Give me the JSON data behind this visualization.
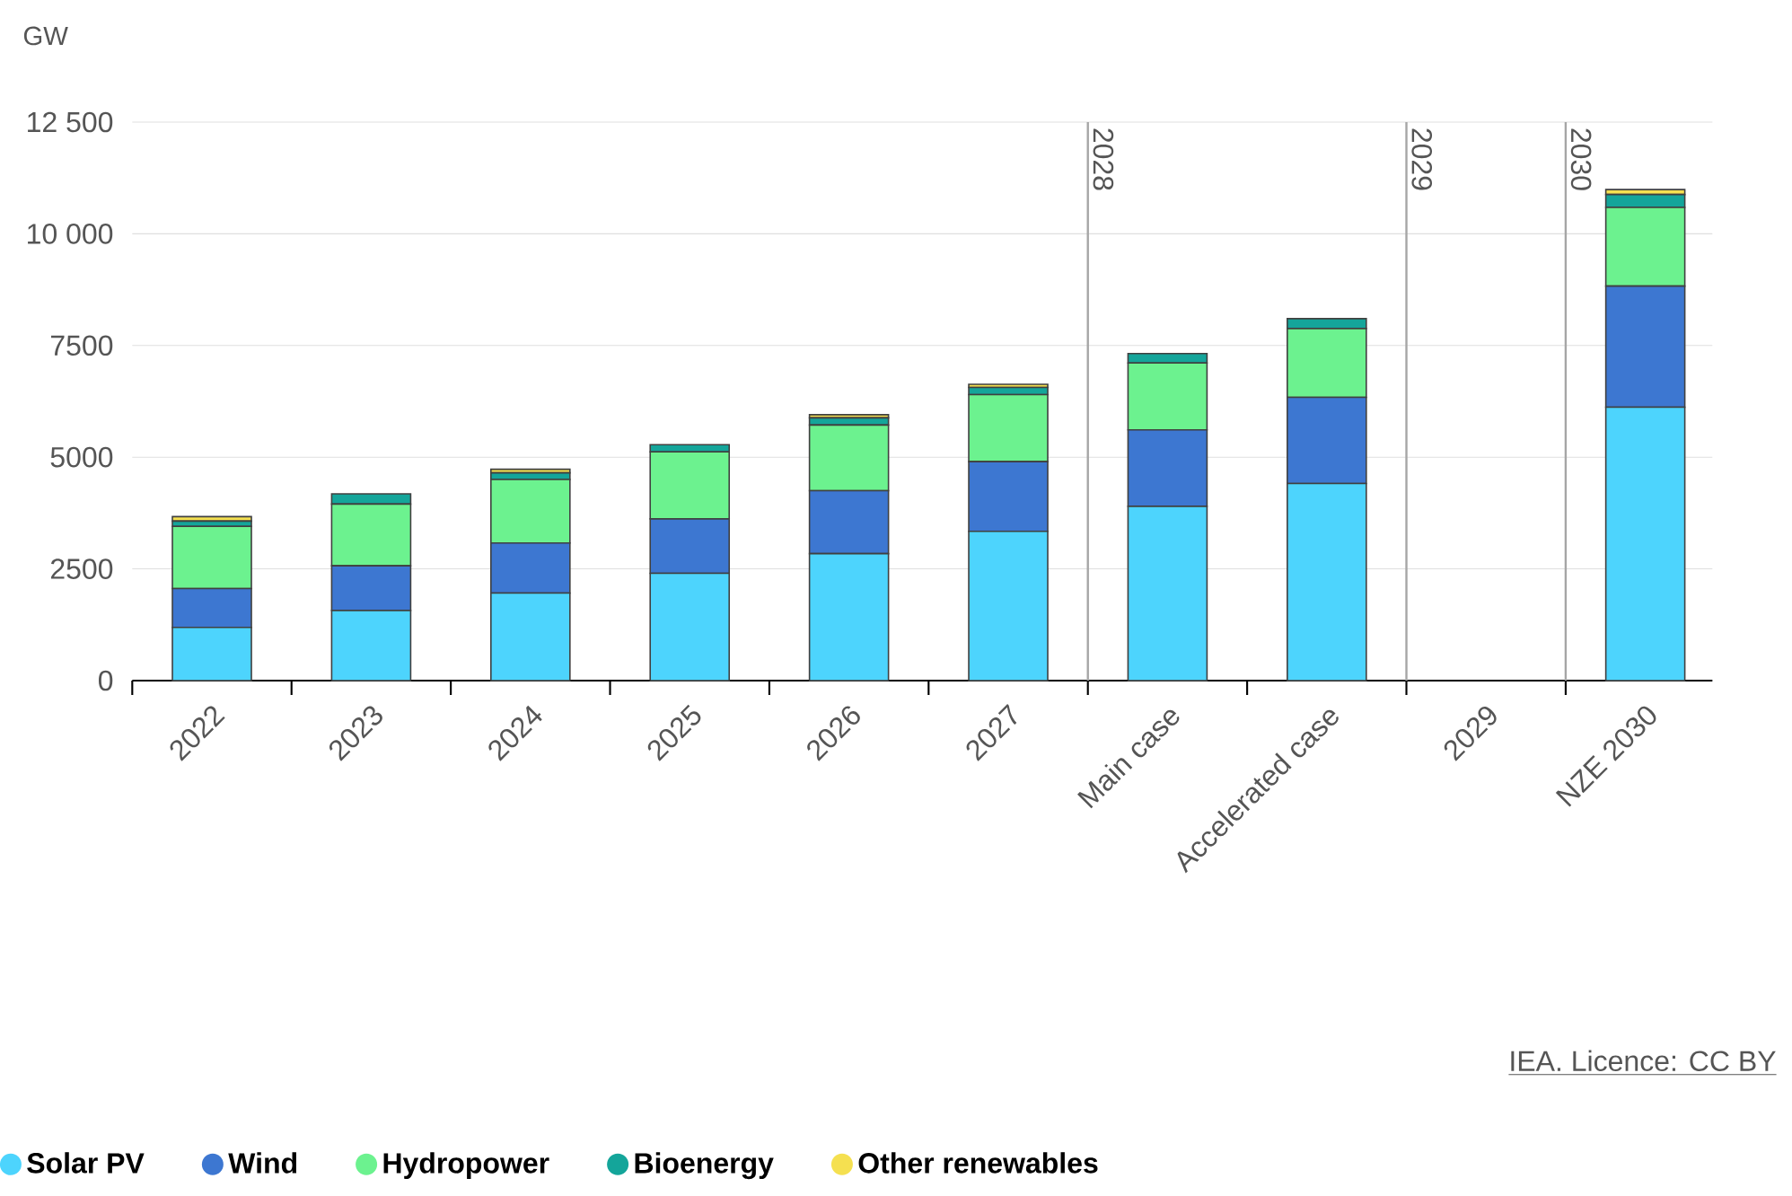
{
  "chart_data": {
    "type": "bar",
    "stacked": true,
    "ylabel": "GW",
    "categories": [
      "2022",
      "2023",
      "2024",
      "2025",
      "2026",
      "2027",
      "Main case",
      "Accelerated case",
      "2029",
      "NZE 2030"
    ],
    "series": [
      {
        "name": "Solar PV",
        "color": "#4dd4fd",
        "values": [
          1190,
          1570,
          1960,
          2400,
          2840,
          3340,
          3900,
          4410,
          null,
          6120
        ]
      },
      {
        "name": "Wind",
        "color": "#3d77d1",
        "values": [
          870,
          1000,
          1120,
          1220,
          1410,
          1560,
          1710,
          1930,
          null,
          2710
        ]
      },
      {
        "name": "Hydropower",
        "color": "#6cf28f",
        "values": [
          1390,
          1380,
          1420,
          1500,
          1470,
          1500,
          1500,
          1540,
          null,
          1760
        ]
      },
      {
        "name": "Bioenergy",
        "color": "#14a59a",
        "values": [
          120,
          230,
          150,
          160,
          160,
          160,
          210,
          220,
          null,
          290
        ]
      },
      {
        "name": "Other renewables",
        "color": "#f5e050",
        "values": [
          100,
          null,
          80,
          null,
          70,
          70,
          null,
          null,
          null,
          110
        ]
      }
    ],
    "ylim": [
      0,
      12500
    ],
    "yticks": [
      0,
      2500,
      5000,
      7500,
      {
        "value": 10000,
        "label": "10 000"
      },
      {
        "value": 12500,
        "label": "12 500"
      }
    ],
    "grid": "y",
    "legend": "bottom",
    "annotations": [
      "2028",
      "2029",
      "2030",
      "IEA. Licence: CC BY"
    ]
  }
}
